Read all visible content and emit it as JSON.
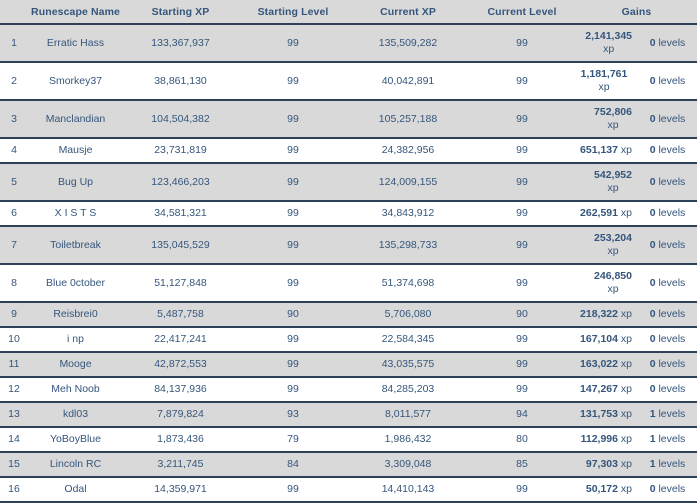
{
  "colors": {
    "background_gray": "#d9d9d9",
    "row_white": "#ffffff",
    "line_navy": "#2e4257",
    "text_navy": "#35567c"
  },
  "table": {
    "headers": [
      "Runescape Name",
      "Starting XP",
      "Starting Level",
      "Current XP",
      "Current Level",
      "Gains"
    ],
    "xp_suffix": "xp",
    "levels_suffix": "levels",
    "rows": [
      {
        "rank": "1",
        "name": "Erratic Hass",
        "starting_xp": "133,367,937",
        "starting_level": "99",
        "current_xp": "135,509,282",
        "current_level": "99",
        "gain_xp": "2,141,345",
        "gain_levels": "0",
        "xp_two_line": true
      },
      {
        "rank": "2",
        "name": "Smorkey37",
        "starting_xp": "38,861,130",
        "starting_level": "99",
        "current_xp": "40,042,891",
        "current_level": "99",
        "gain_xp": "1,181,761",
        "gain_levels": "0",
        "xp_two_line": false
      },
      {
        "rank": "3",
        "name": "Manclandian",
        "starting_xp": "104,504,382",
        "starting_level": "99",
        "current_xp": "105,257,188",
        "current_level": "99",
        "gain_xp": "752,806",
        "gain_levels": "0",
        "xp_two_line": true
      },
      {
        "rank": "4",
        "name": "Mausje",
        "starting_xp": "23,731,819",
        "starting_level": "99",
        "current_xp": "24,382,956",
        "current_level": "99",
        "gain_xp": "651,137",
        "gain_levels": "0",
        "xp_two_line": false
      },
      {
        "rank": "5",
        "name": "Bug Up",
        "starting_xp": "123,466,203",
        "starting_level": "99",
        "current_xp": "124,009,155",
        "current_level": "99",
        "gain_xp": "542,952",
        "gain_levels": "0",
        "xp_two_line": true
      },
      {
        "rank": "6",
        "name": "X I S T S",
        "starting_xp": "34,581,321",
        "starting_level": "99",
        "current_xp": "34,843,912",
        "current_level": "99",
        "gain_xp": "262,591",
        "gain_levels": "0",
        "xp_two_line": false
      },
      {
        "rank": "7",
        "name": "Toiletbreak",
        "starting_xp": "135,045,529",
        "starting_level": "99",
        "current_xp": "135,298,733",
        "current_level": "99",
        "gain_xp": "253,204",
        "gain_levels": "0",
        "xp_two_line": true
      },
      {
        "rank": "8",
        "name": "Blue 0ctober",
        "starting_xp": "51,127,848",
        "starting_level": "99",
        "current_xp": "51,374,698",
        "current_level": "99",
        "gain_xp": "246,850",
        "gain_levels": "0",
        "xp_two_line": true
      },
      {
        "rank": "9",
        "name": "Reisbrei0",
        "starting_xp": "5,487,758",
        "starting_level": "90",
        "current_xp": "5,706,080",
        "current_level": "90",
        "gain_xp": "218,322",
        "gain_levels": "0",
        "xp_two_line": false
      },
      {
        "rank": "10",
        "name": "i np",
        "starting_xp": "22,417,241",
        "starting_level": "99",
        "current_xp": "22,584,345",
        "current_level": "99",
        "gain_xp": "167,104",
        "gain_levels": "0",
        "xp_two_line": false
      },
      {
        "rank": "11",
        "name": "Mooge",
        "starting_xp": "42,872,553",
        "starting_level": "99",
        "current_xp": "43,035,575",
        "current_level": "99",
        "gain_xp": "163,022",
        "gain_levels": "0",
        "xp_two_line": false
      },
      {
        "rank": "12",
        "name": "Meh Noob",
        "starting_xp": "84,137,936",
        "starting_level": "99",
        "current_xp": "84,285,203",
        "current_level": "99",
        "gain_xp": "147,267",
        "gain_levels": "0",
        "xp_two_line": false
      },
      {
        "rank": "13",
        "name": "kdl03",
        "starting_xp": "7,879,824",
        "starting_level": "93",
        "current_xp": "8,011,577",
        "current_level": "94",
        "gain_xp": "131,753",
        "gain_levels": "1",
        "xp_two_line": false
      },
      {
        "rank": "14",
        "name": "YoBoyBlue",
        "starting_xp": "1,873,436",
        "starting_level": "79",
        "current_xp": "1,986,432",
        "current_level": "80",
        "gain_xp": "112,996",
        "gain_levels": "1",
        "xp_two_line": false
      },
      {
        "rank": "15",
        "name": "Lincoln RC",
        "starting_xp": "3,211,745",
        "starting_level": "84",
        "current_xp": "3,309,048",
        "current_level": "85",
        "gain_xp": "97,303",
        "gain_levels": "1",
        "xp_two_line": false
      },
      {
        "rank": "16",
        "name": "Odal",
        "starting_xp": "14,359,971",
        "starting_level": "99",
        "current_xp": "14,410,143",
        "current_level": "99",
        "gain_xp": "50,172",
        "gain_levels": "0",
        "xp_two_line": false
      }
    ]
  }
}
